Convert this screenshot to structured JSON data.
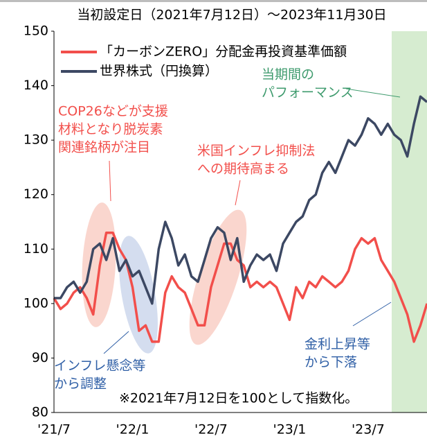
{
  "chart_data": {
    "type": "line",
    "title": "当初設定日（2021年7月12日）～2023年11月30日",
    "categories": [
      "'21/7",
      null,
      null,
      null,
      null,
      null,
      null,
      null,
      null,
      null,
      null,
      null,
      "'22/1",
      null,
      null,
      null,
      null,
      null,
      null,
      null,
      null,
      null,
      null,
      null,
      "'22/7",
      null,
      null,
      null,
      null,
      null,
      null,
      null,
      null,
      null,
      null,
      null,
      "'23/1",
      null,
      null,
      null,
      null,
      null,
      null,
      null,
      null,
      null,
      null,
      null,
      "'23/7",
      null,
      null,
      null,
      null,
      null,
      null,
      null,
      null,
      null
    ],
    "series": [
      {
        "name": "「カーボンZERO」分配金再投資基準価額",
        "color": "#f24f4b",
        "values": [
          101,
          99,
          100,
          102,
          103,
          101,
          98,
          107,
          113,
          113,
          110,
          108,
          103,
          95,
          96,
          93,
          93,
          102,
          105,
          103,
          102,
          99,
          96,
          96,
          103,
          107,
          111,
          111,
          108,
          107,
          103,
          104,
          103,
          104,
          103,
          100,
          97,
          103,
          101,
          104,
          103,
          105,
          104,
          103,
          104,
          106,
          110,
          112,
          111,
          112,
          108,
          106,
          104,
          101,
          98,
          93,
          96,
          100
        ]
      },
      {
        "name": "世界株式（円換算）",
        "color": "#3c4863",
        "values": [
          101,
          101,
          103,
          104,
          102,
          104,
          110,
          111,
          108,
          112,
          106,
          108,
          105,
          106,
          103,
          100,
          110,
          115,
          112,
          107,
          109,
          105,
          104,
          108,
          112,
          114,
          113,
          108,
          112,
          104,
          107,
          109,
          108,
          109,
          106,
          111,
          113,
          115,
          116,
          119,
          120,
          124,
          126,
          124,
          127,
          130,
          129,
          131,
          134,
          133,
          131,
          133,
          131,
          130,
          127,
          133,
          138,
          137
        ]
      }
    ],
    "ylim": [
      80,
      150
    ],
    "yticks": [
      80,
      90,
      100,
      110,
      120,
      130,
      140,
      150
    ],
    "annotations": [
      {
        "lines": [
          "COP26などが支援",
          "材料となり脱炭素",
          "関連銘柄が注目"
        ],
        "color": "#f24f4b"
      },
      {
        "lines": [
          "米国インフレ抑制法",
          "への期待高まる"
        ],
        "color": "#f24f4b"
      },
      {
        "lines": [
          "当期間の",
          "パフォーマンス"
        ],
        "color": "#3f9b6e"
      },
      {
        "lines": [
          "金利上昇等",
          "から下落"
        ],
        "color": "#2f5fa6"
      },
      {
        "lines": [
          "インフレ懸念等",
          "から調整"
        ],
        "color": "#2f5fa6"
      }
    ],
    "note": "※2021年7月12日を100として指数化。"
  }
}
